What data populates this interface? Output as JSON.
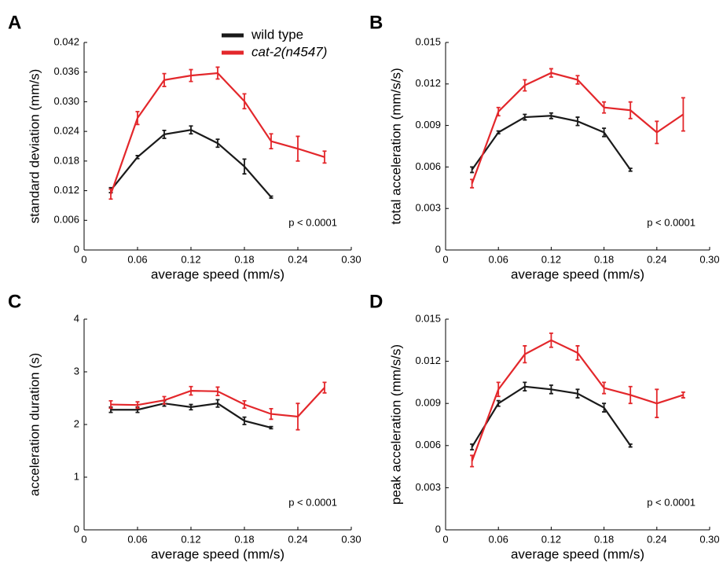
{
  "chart_data": [
    {
      "type": "line",
      "panel_label": "A",
      "xlabel": "average speed (mm/s)",
      "ylabel": "standard deviation (mm/s)",
      "annotation": "p < 0.0001",
      "legend": true,
      "xlim": [
        0,
        0.3
      ],
      "xticks": [
        0,
        0.06,
        0.12,
        0.18,
        0.24,
        {
          "value": 0.3,
          "label": "0.30"
        }
      ],
      "ylim": [
        0,
        0.042
      ],
      "yticks": [
        0,
        0.006,
        0.012,
        0.018,
        0.024,
        {
          "value": 0.03,
          "label": "0.030"
        },
        0.036,
        0.042
      ],
      "series": [
        {
          "name": "wild type",
          "color": "#1a1a1a",
          "x": [
            0.03,
            0.06,
            0.09,
            0.12,
            0.15,
            0.18,
            0.21
          ],
          "values": [
            0.0121,
            0.0188,
            0.0234,
            0.0243,
            0.0216,
            0.0169,
            0.0107
          ],
          "errors": [
            0.0005,
            0.0003,
            0.0008,
            0.0008,
            0.0008,
            0.0015,
            0.0002
          ]
        },
        {
          "name": "cat-2(n4547)",
          "color": "#e3272b",
          "x": [
            0.03,
            0.06,
            0.09,
            0.12,
            0.15,
            0.18,
            0.21,
            0.24,
            0.27
          ],
          "values": [
            0.0113,
            0.0267,
            0.0344,
            0.0353,
            0.0358,
            0.0301,
            0.022,
            0.0205,
            0.0188
          ],
          "errors": [
            0.001,
            0.0013,
            0.0013,
            0.0012,
            0.0012,
            0.0015,
            0.0015,
            0.0025,
            0.0012
          ]
        }
      ]
    },
    {
      "type": "line",
      "panel_label": "B",
      "xlabel": "average speed (mm/s)",
      "ylabel": "total acceleration (mm/s/s)",
      "annotation": "p < 0.0001",
      "xlim": [
        0,
        0.3
      ],
      "xticks": [
        0,
        0.06,
        0.12,
        0.18,
        0.24,
        {
          "value": 0.3,
          "label": "0.30"
        }
      ],
      "ylim": [
        0,
        0.015
      ],
      "yticks": [
        0,
        0.003,
        0.006,
        0.009,
        0.012,
        0.015
      ],
      "series": [
        {
          "color": "#1a1a1a",
          "x": [
            0.03,
            0.06,
            0.09,
            0.12,
            0.15,
            0.18,
            0.21
          ],
          "values": [
            0.0058,
            0.0085,
            0.0096,
            0.0097,
            0.0093,
            0.0085,
            0.0058
          ],
          "errors": [
            0.0002,
            0.0001,
            0.0002,
            0.0002,
            0.0003,
            0.0003,
            0.0001
          ]
        },
        {
          "color": "#e3272b",
          "x": [
            0.03,
            0.06,
            0.09,
            0.12,
            0.15,
            0.18,
            0.21,
            0.24,
            0.27
          ],
          "values": [
            0.0048,
            0.01,
            0.0119,
            0.0128,
            0.0123,
            0.0103,
            0.0101,
            0.0085,
            0.0098
          ],
          "errors": [
            0.0003,
            0.0003,
            0.0004,
            0.0003,
            0.0003,
            0.0004,
            0.0006,
            0.0008,
            0.0012
          ]
        }
      ]
    },
    {
      "type": "line",
      "panel_label": "C",
      "xlabel": "average speed (mm/s)",
      "ylabel": "acceleration duration (s)",
      "annotation": "p < 0.0001",
      "xlim": [
        0,
        0.3
      ],
      "xticks": [
        0,
        0.06,
        0.12,
        0.18,
        0.24,
        {
          "value": 0.3,
          "label": "0.30"
        }
      ],
      "ylim": [
        0,
        4
      ],
      "yticks": [
        0,
        1,
        2,
        3,
        4
      ],
      "series": [
        {
          "color": "#1a1a1a",
          "x": [
            0.03,
            0.06,
            0.09,
            0.12,
            0.15,
            0.18,
            0.21
          ],
          "values": [
            2.28,
            2.28,
            2.4,
            2.33,
            2.4,
            2.07,
            1.94
          ],
          "errors": [
            0.05,
            0.05,
            0.05,
            0.05,
            0.07,
            0.07,
            0.02
          ]
        },
        {
          "color": "#e3272b",
          "x": [
            0.03,
            0.06,
            0.09,
            0.12,
            0.15,
            0.18,
            0.21,
            0.24,
            0.27
          ],
          "values": [
            2.38,
            2.37,
            2.46,
            2.64,
            2.63,
            2.38,
            2.2,
            2.15,
            2.7
          ],
          "errors": [
            0.07,
            0.06,
            0.07,
            0.08,
            0.08,
            0.07,
            0.1,
            0.25,
            0.1
          ]
        }
      ]
    },
    {
      "type": "line",
      "panel_label": "D",
      "xlabel": "average speed (mm/s)",
      "ylabel": "peak acceleration (mm/s/s)",
      "annotation": "p < 0.0001",
      "xlim": [
        0,
        0.3
      ],
      "xticks": [
        0,
        0.06,
        0.12,
        0.18,
        0.24,
        {
          "value": 0.3,
          "label": "0.30"
        }
      ],
      "ylim": [
        0,
        0.015
      ],
      "yticks": [
        0,
        0.003,
        0.006,
        0.009,
        0.012,
        0.015
      ],
      "series": [
        {
          "color": "#1a1a1a",
          "x": [
            0.03,
            0.06,
            0.09,
            0.12,
            0.15,
            0.18,
            0.21
          ],
          "values": [
            0.0059,
            0.009,
            0.0102,
            0.01,
            0.0097,
            0.0087,
            0.006
          ],
          "errors": [
            0.0002,
            0.0002,
            0.0003,
            0.0003,
            0.0003,
            0.0003,
            0.0001
          ]
        },
        {
          "color": "#e3272b",
          "x": [
            0.03,
            0.06,
            0.09,
            0.12,
            0.15,
            0.18,
            0.21,
            0.24,
            0.27
          ],
          "values": [
            0.0049,
            0.01,
            0.0125,
            0.0135,
            0.0126,
            0.0101,
            0.0096,
            0.009,
            0.0096
          ],
          "errors": [
            0.0004,
            0.0005,
            0.0006,
            0.0005,
            0.0005,
            0.0004,
            0.0006,
            0.001,
            0.0002
          ]
        }
      ]
    }
  ]
}
